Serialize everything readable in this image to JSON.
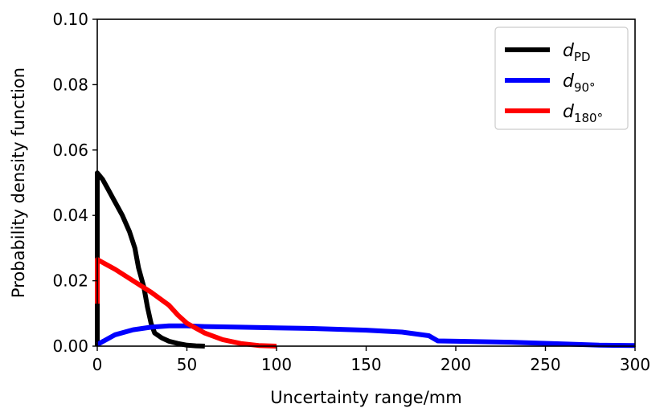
{
  "chart_data": {
    "type": "line",
    "title": "",
    "xlabel": "Uncertainty range/mm",
    "ylabel": "Probability density function",
    "xlim": [
      0,
      300
    ],
    "ylim": [
      0,
      0.1
    ],
    "x_ticks": [
      0,
      50,
      100,
      150,
      200,
      250,
      300
    ],
    "y_ticks": [
      0.0,
      0.02,
      0.04,
      0.06,
      0.08,
      0.1
    ],
    "x_tick_labels": [
      "0",
      "50",
      "100",
      "150",
      "200",
      "250",
      "300"
    ],
    "y_tick_labels": [
      "0.00",
      "0.02",
      "0.04",
      "0.06",
      "0.08",
      "0.10"
    ],
    "grid": false,
    "legend_position": "top-right",
    "series": [
      {
        "name": "d_PD",
        "label_main": "d",
        "label_sub": "PD",
        "color": "#000000",
        "points": [
          [
            0,
            0.0
          ],
          [
            0,
            0.053
          ],
          [
            3,
            0.051
          ],
          [
            6,
            0.048
          ],
          [
            10,
            0.044
          ],
          [
            14,
            0.04
          ],
          [
            18,
            0.035
          ],
          [
            21,
            0.03
          ],
          [
            23,
            0.024
          ],
          [
            26,
            0.018
          ],
          [
            28,
            0.012
          ],
          [
            30,
            0.007
          ],
          [
            32,
            0.004
          ],
          [
            36,
            0.0025
          ],
          [
            40,
            0.0015
          ],
          [
            45,
            0.0008
          ],
          [
            50,
            0.0003
          ],
          [
            55,
            0.0001
          ],
          [
            60,
            0.0
          ]
        ]
      },
      {
        "name": "d_90°",
        "label_main": "d",
        "label_sub": "90°",
        "color": "#0000ff",
        "points": [
          [
            0,
            0.0005
          ],
          [
            5,
            0.002
          ],
          [
            10,
            0.0035
          ],
          [
            20,
            0.005
          ],
          [
            30,
            0.0058
          ],
          [
            40,
            0.0062
          ],
          [
            50,
            0.0062
          ],
          [
            60,
            0.006
          ],
          [
            80,
            0.0058
          ],
          [
            100,
            0.0056
          ],
          [
            120,
            0.0054
          ],
          [
            150,
            0.0049
          ],
          [
            170,
            0.0043
          ],
          [
            185,
            0.0032
          ],
          [
            190,
            0.0016
          ],
          [
            200,
            0.0015
          ],
          [
            230,
            0.0012
          ],
          [
            260,
            0.0007
          ],
          [
            280,
            0.0003
          ],
          [
            300,
            0.0002
          ]
        ]
      },
      {
        "name": "d_180°",
        "label_main": "d",
        "label_sub": "180°",
        "color": "#ff0000",
        "points": [
          [
            0,
            0.013
          ],
          [
            0,
            0.0265
          ],
          [
            10,
            0.0235
          ],
          [
            20,
            0.02
          ],
          [
            30,
            0.0165
          ],
          [
            40,
            0.0125
          ],
          [
            45,
            0.0095
          ],
          [
            50,
            0.007
          ],
          [
            60,
            0.004
          ],
          [
            70,
            0.002
          ],
          [
            80,
            0.0008
          ],
          [
            90,
            0.0002
          ],
          [
            100,
            0.0
          ]
        ]
      }
    ]
  }
}
